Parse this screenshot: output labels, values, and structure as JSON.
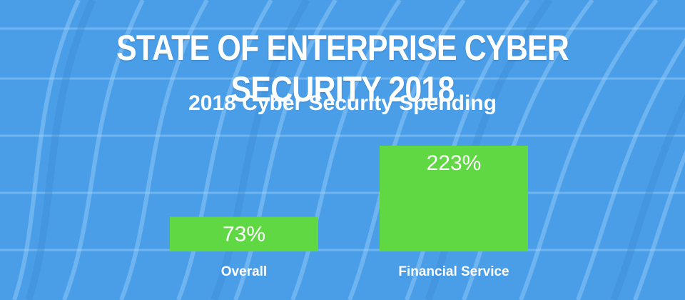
{
  "header": {
    "title": "STATE OF ENTERPRISE CYBER SECURITY 2018"
  },
  "colors": {
    "background": "#4a9ee8",
    "bar": "#5fd843",
    "text": "#ffffff"
  },
  "chart_data": {
    "type": "bar",
    "title": "2018 Cyber Security Spending",
    "categories": [
      "Overall",
      "Financial Service"
    ],
    "values": [
      73,
      223
    ],
    "value_labels": [
      "73%",
      "223%"
    ],
    "unit": "%",
    "xlabel": "",
    "ylabel": "",
    "ylim": [
      0,
      223
    ],
    "grid": false,
    "legend": "none"
  }
}
